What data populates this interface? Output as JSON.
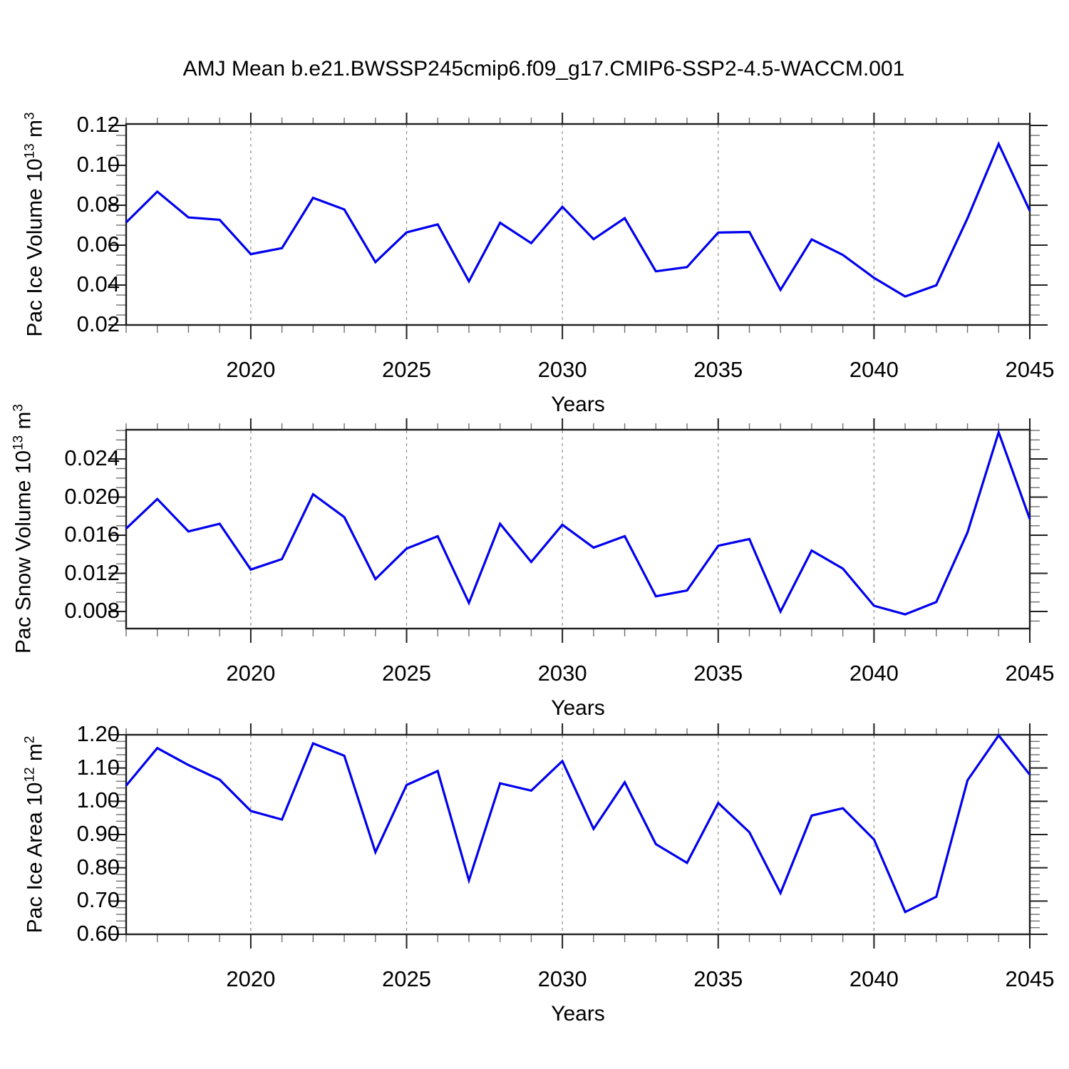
{
  "header": {
    "title": "AMJ Mean b.e21.BWSSP245cmip6.f09_g17.CMIP6-SSP2-4.5-WACCM.001"
  },
  "colors": {
    "line": "#0000ee",
    "grid": "#8c8c8c",
    "frame": "#1f1f1f",
    "minor_tick": "#6f6f6f",
    "text": "#000000",
    "background": "#ffffff"
  },
  "chart_data": [
    {
      "type": "line",
      "ylabel_prefix": "Pac Ice Volume 10",
      "ylabel_sup1": "13",
      "ylabel_mid": " m",
      "ylabel_sup2": "3",
      "xlabel": "Years",
      "x": [
        2016,
        2017,
        2018,
        2019,
        2020,
        2021,
        2022,
        2023,
        2024,
        2025,
        2026,
        2027,
        2028,
        2029,
        2030,
        2031,
        2032,
        2033,
        2034,
        2035,
        2036,
        2037,
        2038,
        2039,
        2040,
        2041,
        2042,
        2043,
        2044,
        2045
      ],
      "values": [
        0.0714,
        0.0868,
        0.0739,
        0.0727,
        0.0555,
        0.0585,
        0.0837,
        0.0779,
        0.0515,
        0.0664,
        0.0704,
        0.0419,
        0.0712,
        0.061,
        0.0792,
        0.063,
        0.0735,
        0.0469,
        0.049,
        0.0663,
        0.0666,
        0.0376,
        0.0629,
        0.0551,
        0.0436,
        0.0343,
        0.0399,
        0.0735,
        0.1107,
        0.0772
      ],
      "xlim": [
        2016,
        2045
      ],
      "ylim": [
        0.02,
        0.1207
      ],
      "yticks": {
        "major": [
          0.02,
          0.04,
          0.06,
          0.08,
          0.1,
          0.12
        ],
        "labels": [
          "0.02",
          "0.04",
          "0.06",
          "0.08",
          "0.10",
          "0.12"
        ],
        "minor_step": 0.005
      },
      "xticks": {
        "major": [
          2020,
          2025,
          2030,
          2035,
          2040,
          2045
        ],
        "labels": [
          "2020",
          "2025",
          "2030",
          "2035",
          "2040",
          "2045"
        ],
        "minor_step": 1
      },
      "gridlines_x": [
        2020,
        2025,
        2030,
        2035,
        2040
      ],
      "grid_style": "dashed",
      "legend": "none"
    },
    {
      "type": "line",
      "ylabel_prefix": "Pac Snow Volume 10",
      "ylabel_sup1": "13",
      "ylabel_mid": " m",
      "ylabel_sup2": "3",
      "xlabel": "Years",
      "x": [
        2016,
        2017,
        2018,
        2019,
        2020,
        2021,
        2022,
        2023,
        2024,
        2025,
        2026,
        2027,
        2028,
        2029,
        2030,
        2031,
        2032,
        2033,
        2034,
        2035,
        2036,
        2037,
        2038,
        2039,
        2040,
        2041,
        2042,
        2043,
        2044,
        2045
      ],
      "values": [
        0.0167,
        0.0198,
        0.0164,
        0.0172,
        0.0124,
        0.0135,
        0.0203,
        0.0179,
        0.0114,
        0.0146,
        0.0159,
        0.0089,
        0.0172,
        0.0132,
        0.0171,
        0.0147,
        0.0159,
        0.0096,
        0.0102,
        0.0149,
        0.0156,
        0.008,
        0.0144,
        0.0125,
        0.0086,
        0.0077,
        0.009,
        0.0163,
        0.0268,
        0.0177
      ],
      "xlim": [
        2016,
        2045
      ],
      "ylim": [
        0.00621,
        0.02707
      ],
      "yticks": {
        "major": [
          0.008,
          0.012,
          0.016,
          0.02,
          0.024
        ],
        "labels": [
          "0.008",
          "0.012",
          "0.016",
          "0.020",
          "0.024"
        ],
        "minor_step": 0.001
      },
      "xticks": {
        "major": [
          2020,
          2025,
          2030,
          2035,
          2040,
          2045
        ],
        "labels": [
          "2020",
          "2025",
          "2030",
          "2035",
          "2040",
          "2045"
        ],
        "minor_step": 1
      },
      "gridlines_x": [
        2020,
        2025,
        2030,
        2035,
        2040
      ],
      "grid_style": "dashed",
      "legend": "none"
    },
    {
      "type": "line",
      "ylabel_prefix": "Pac Ice Area 10",
      "ylabel_sup1": "12",
      "ylabel_mid": " m",
      "ylabel_sup2": "2",
      "xlabel": "Years",
      "x": [
        2016,
        2017,
        2018,
        2019,
        2020,
        2021,
        2022,
        2023,
        2024,
        2025,
        2026,
        2027,
        2028,
        2029,
        2030,
        2031,
        2032,
        2033,
        2034,
        2035,
        2036,
        2037,
        2038,
        2039,
        2040,
        2041,
        2042,
        2043,
        2044,
        2045
      ],
      "values": [
        1.047,
        1.16,
        1.109,
        1.065,
        0.971,
        0.945,
        1.174,
        1.137,
        0.847,
        1.049,
        1.091,
        0.762,
        1.054,
        1.032,
        1.121,
        0.917,
        1.057,
        0.871,
        0.815,
        0.995,
        0.907,
        0.724,
        0.957,
        0.979,
        0.885,
        0.667,
        0.713,
        1.063,
        1.198,
        1.08
      ],
      "xlim": [
        2016,
        2045
      ],
      "ylim": [
        0.6,
        1.2
      ],
      "yticks": {
        "major": [
          0.6,
          0.7,
          0.8,
          0.9,
          1.0,
          1.1,
          1.2
        ],
        "labels": [
          "0.60",
          "0.70",
          "0.80",
          "0.90",
          "1.00",
          "1.10",
          "1.20"
        ],
        "minor_step": 0.02
      },
      "xticks": {
        "major": [
          2020,
          2025,
          2030,
          2035,
          2040,
          2045
        ],
        "labels": [
          "2020",
          "2025",
          "2030",
          "2035",
          "2040",
          "2045"
        ],
        "minor_step": 1
      },
      "gridlines_x": [
        2020,
        2025,
        2030,
        2035,
        2040
      ],
      "grid_style": "dashed",
      "legend": "none"
    }
  ]
}
